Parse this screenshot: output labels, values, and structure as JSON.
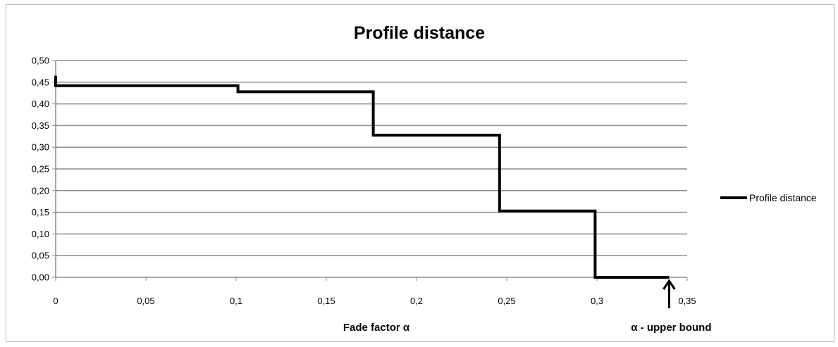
{
  "chart_data": {
    "type": "line",
    "title": "Profile distance",
    "xlabel": "Fade factor α",
    "ylabel": "",
    "xlim": [
      0,
      0.35
    ],
    "ylim": [
      0,
      0.5
    ],
    "x_ticks": [
      "0",
      "0,05",
      "0,1",
      "0,15",
      "0,2",
      "0,25",
      "0,3",
      "0,35"
    ],
    "x_tick_values": [
      0,
      0.05,
      0.1,
      0.15,
      0.2,
      0.25,
      0.3,
      0.35
    ],
    "y_ticks": [
      "0,00",
      "0,05",
      "0,10",
      "0,15",
      "0,20",
      "0,25",
      "0,30",
      "0,35",
      "0,40",
      "0,45",
      "0,50"
    ],
    "y_tick_values": [
      0,
      0.05,
      0.1,
      0.15,
      0.2,
      0.25,
      0.3,
      0.35,
      0.4,
      0.45,
      0.5
    ],
    "grid": "horizontal",
    "legend_position": "right",
    "series": [
      {
        "name": "Profile distance",
        "color": "#000000",
        "step": true,
        "x": [
          0,
          0,
          0.101,
          0.101,
          0.176,
          0.176,
          0.246,
          0.246,
          0.299,
          0.299,
          0.34
        ],
        "y": [
          0.465,
          0.442,
          0.442,
          0.428,
          0.428,
          0.328,
          0.328,
          0.153,
          0.153,
          0.0,
          0.0
        ]
      }
    ],
    "annotations": [
      {
        "text": "α - upper bound",
        "x": 0.34,
        "arrow": "up"
      }
    ]
  }
}
